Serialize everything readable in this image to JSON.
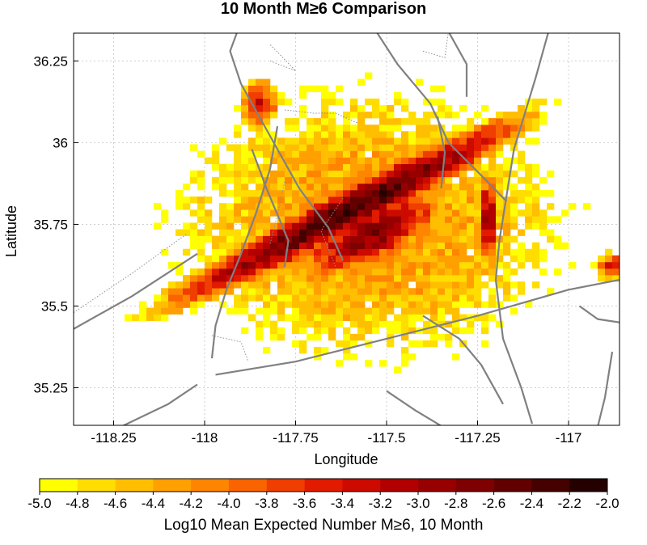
{
  "chart_data": {
    "type": "heatmap",
    "title": "10 Month M≥6 Comparison",
    "xlabel": "Longitude",
    "ylabel": "Latitude",
    "xlim": [
      -118.36,
      -116.86
    ],
    "ylim": [
      35.135,
      36.335
    ],
    "xticks": [
      {
        "value": -118.25,
        "label": "-118.25"
      },
      {
        "value": -118.0,
        "label": "-118"
      },
      {
        "value": -117.75,
        "label": "-117.75"
      },
      {
        "value": -117.5,
        "label": "-117.5"
      },
      {
        "value": -117.25,
        "label": "-117.25"
      },
      {
        "value": -117.0,
        "label": "-117"
      }
    ],
    "yticks": [
      {
        "value": 35.25,
        "label": "35.25"
      },
      {
        "value": 35.5,
        "label": "35.5"
      },
      {
        "value": 35.75,
        "label": "35.75"
      },
      {
        "value": 36.0,
        "label": "36"
      },
      {
        "value": 36.25,
        "label": "36.25"
      }
    ],
    "grid": true,
    "colorbar": {
      "label": "Log10 Mean Expected Number M≥6, 10 Month",
      "min": -5.0,
      "max": -2.0,
      "step": 0.2,
      "tick_labels": [
        "-5.0",
        "-4.8",
        "-4.6",
        "-4.4",
        "-4.2",
        "-4.0",
        "-3.8",
        "-3.6",
        "-3.4",
        "-3.2",
        "-3.0",
        "-2.8",
        "-2.6",
        "-2.4",
        "-2.2",
        "-2.0"
      ],
      "colors": [
        "#ffff00",
        "#ffdd00",
        "#ffbf00",
        "#ffa000",
        "#ff8400",
        "#f96300",
        "#ef3e00",
        "#e11a00",
        "#cc0a00",
        "#b20000",
        "#980000",
        "#7e0000",
        "#620000",
        "#450000",
        "#250000"
      ],
      "position": "bottom"
    },
    "cell_size_deg": 0.02,
    "high_zones": [
      {
        "lon": -117.61,
        "lat": 35.79,
        "lon_sigma": 0.34,
        "lat_sigma": 0.038,
        "angle_deg": -30,
        "peak": -2.3
      },
      {
        "lon": -117.54,
        "lat": 35.72,
        "lon_sigma": 0.14,
        "lat_sigma": 0.05,
        "angle_deg": -30,
        "peak": -2.7
      },
      {
        "lon": -117.22,
        "lat": 35.77,
        "lon_sigma": 0.02,
        "lat_sigma": 0.09,
        "angle_deg": 0,
        "peak": -2.9
      },
      {
        "lon": -117.85,
        "lat": 36.12,
        "lon_sigma": 0.04,
        "lat_sigma": 0.06,
        "angle_deg": 0,
        "peak": -3.4
      },
      {
        "lon": -116.88,
        "lat": 35.62,
        "lon_sigma": 0.03,
        "lat_sigma": 0.03,
        "angle_deg": 0,
        "peak": -3.3
      }
    ]
  }
}
